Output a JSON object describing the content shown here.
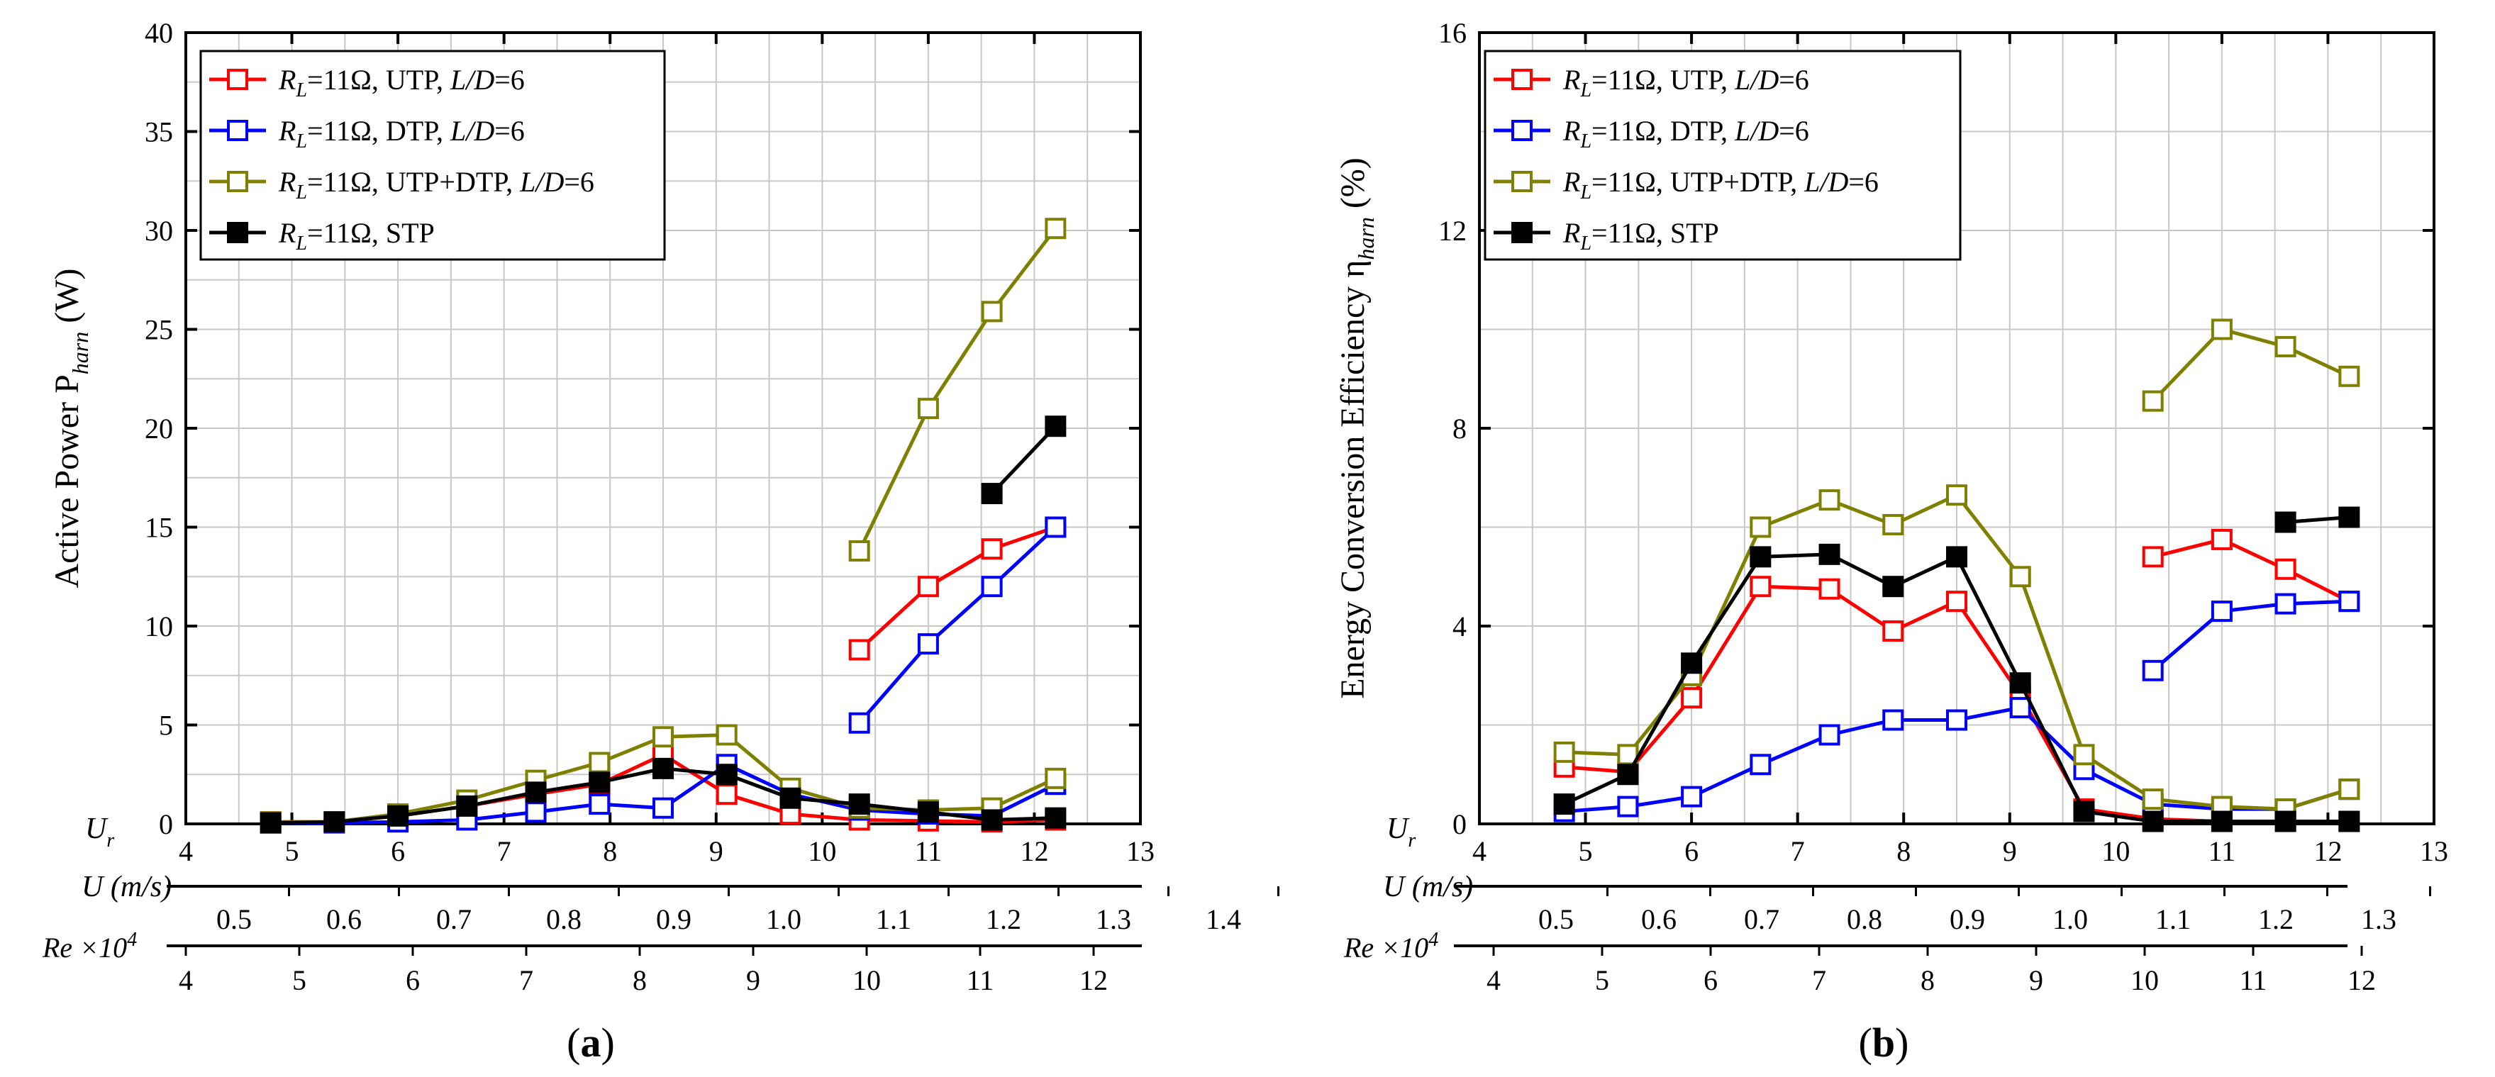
{
  "chart_data": [
    {
      "panel_label": "(a)",
      "type": "line",
      "ylabel": "Active Power P",
      "ylabel_sub": "harn",
      "ylabel_unit": "(W)",
      "ylim": [
        0,
        40
      ],
      "yticks": [
        "0",
        "5",
        "10",
        "15",
        "20",
        "25",
        "30",
        "35",
        "40"
      ],
      "xlim": [
        4,
        13
      ],
      "x_axis_label": "U",
      "x_axis_label_sub": "r",
      "xticks": [
        "4",
        "5",
        "6",
        "7",
        "8",
        "9",
        "10",
        "11",
        "12",
        "13"
      ],
      "u_axis_label": "U (m/s)",
      "u_ticks": [
        "0.5",
        "0.6",
        "0.7",
        "0.8",
        "0.9",
        "1.0",
        "1.1",
        "1.2",
        "1.3",
        "1.4"
      ],
      "re_axis_label": "Re ×10",
      "re_axis_label_sup": "4",
      "re_ticks": [
        "4",
        "5",
        "6",
        "7",
        "8",
        "9",
        "10",
        "11",
        "12"
      ],
      "grid": true,
      "legend": "top-left",
      "series": [
        {
          "name": "UTP",
          "legend_parts": [
            "R",
            "L",
            "=11Ω, UTP, ",
            "L/D",
            "=6"
          ],
          "color": "#ff0000",
          "marker": "open-square",
          "segments": [
            [
              [
                4.8,
                0.1
              ],
              [
                5.4,
                0.1
              ],
              [
                6.0,
                0.4
              ],
              [
                6.65,
                0.9
              ],
              [
                7.3,
                1.5
              ],
              [
                7.9,
                2.0
              ],
              [
                8.5,
                3.5
              ],
              [
                9.1,
                1.5
              ],
              [
                9.7,
                0.5
              ],
              [
                10.35,
                0.2
              ],
              [
                11.0,
                0.15
              ],
              [
                11.6,
                0.1
              ],
              [
                12.2,
                0.2
              ]
            ],
            [
              [
                10.35,
                8.8
              ],
              [
                11.0,
                12.0
              ],
              [
                11.6,
                13.9
              ],
              [
                12.2,
                15.0
              ]
            ]
          ]
        },
        {
          "name": "DTP",
          "legend_parts": [
            "R",
            "L",
            "=11Ω, DTP, ",
            "L/D",
            "=6"
          ],
          "color": "#0000ff",
          "marker": "open-square",
          "segments": [
            [
              [
                4.8,
                0.05
              ],
              [
                5.4,
                0.05
              ],
              [
                6.0,
                0.1
              ],
              [
                6.65,
                0.2
              ],
              [
                7.3,
                0.6
              ],
              [
                7.9,
                1.0
              ],
              [
                8.5,
                0.8
              ],
              [
                9.1,
                3.0
              ],
              [
                9.7,
                1.5
              ],
              [
                10.35,
                0.7
              ],
              [
                11.0,
                0.5
              ],
              [
                11.6,
                0.4
              ],
              [
                12.2,
                2.0
              ]
            ],
            [
              [
                10.35,
                5.1
              ],
              [
                11.0,
                9.1
              ],
              [
                11.6,
                12.0
              ],
              [
                12.2,
                15.0
              ]
            ]
          ]
        },
        {
          "name": "UTP+DTP",
          "legend_parts": [
            "R",
            "L",
            "=11Ω, UTP+DTP, ",
            "L/D",
            "=6"
          ],
          "color": "#808000",
          "marker": "open-square",
          "segments": [
            [
              [
                4.8,
                0.1
              ],
              [
                5.4,
                0.1
              ],
              [
                6.0,
                0.5
              ],
              [
                6.65,
                1.2
              ],
              [
                7.3,
                2.2
              ],
              [
                7.9,
                3.1
              ],
              [
                8.5,
                4.4
              ],
              [
                9.1,
                4.5
              ],
              [
                9.7,
                1.8
              ],
              [
                10.35,
                0.8
              ],
              [
                11.0,
                0.7
              ],
              [
                11.6,
                0.8
              ],
              [
                12.2,
                2.3
              ]
            ],
            [
              [
                10.35,
                13.8
              ],
              [
                11.0,
                21.0
              ],
              [
                11.6,
                25.9
              ],
              [
                12.2,
                30.1
              ]
            ]
          ]
        },
        {
          "name": "STP",
          "legend_parts": [
            "R",
            "L",
            "=11Ω, STP",
            "",
            ""
          ],
          "color": "#000000",
          "marker": "filled-square",
          "segments": [
            [
              [
                4.8,
                0.05
              ],
              [
                5.4,
                0.1
              ],
              [
                6.0,
                0.4
              ],
              [
                6.65,
                0.9
              ],
              [
                7.3,
                1.6
              ],
              [
                7.9,
                2.1
              ],
              [
                8.5,
                2.8
              ],
              [
                9.1,
                2.5
              ],
              [
                9.7,
                1.3
              ],
              [
                10.35,
                1.0
              ],
              [
                11.0,
                0.6
              ],
              [
                11.6,
                0.2
              ],
              [
                12.2,
                0.3
              ]
            ],
            [
              [
                11.6,
                16.7
              ],
              [
                12.2,
                20.1
              ]
            ]
          ]
        }
      ]
    },
    {
      "panel_label": "(b)",
      "type": "line",
      "ylabel": "Energy Conversion Efficiency η",
      "ylabel_sub": "harn",
      "ylabel_unit": "(%)",
      "ylim": [
        0,
        16
      ],
      "yticks": [
        "0",
        "4",
        "8",
        "12",
        "16"
      ],
      "xlim": [
        4,
        13
      ],
      "x_axis_label": "U",
      "x_axis_label_sub": "r",
      "xticks": [
        "4",
        "5",
        "6",
        "7",
        "8",
        "9",
        "10",
        "11",
        "12",
        "13"
      ],
      "u_axis_label": "U (m/s)",
      "u_ticks": [
        "0.5",
        "0.6",
        "0.7",
        "0.8",
        "0.9",
        "1.0",
        "1.1",
        "1.2",
        "1.3"
      ],
      "re_axis_label": "Re ×10",
      "re_axis_label_sup": "4",
      "re_ticks": [
        "4",
        "5",
        "6",
        "7",
        "8",
        "9",
        "10",
        "11",
        "12"
      ],
      "grid": true,
      "legend": "top-left",
      "series": [
        {
          "name": "UTP",
          "legend_parts": [
            "R",
            "L",
            "=11Ω, UTP, ",
            "L/D",
            "=6"
          ],
          "color": "#ff0000",
          "marker": "open-square",
          "segments": [
            [
              [
                4.8,
                1.15
              ],
              [
                5.4,
                1.05
              ],
              [
                6.0,
                2.55
              ],
              [
                6.65,
                4.8
              ],
              [
                7.3,
                4.75
              ],
              [
                7.9,
                3.9
              ],
              [
                8.5,
                4.5
              ],
              [
                9.1,
                2.6
              ],
              [
                9.7,
                0.3
              ],
              [
                10.35,
                0.1
              ],
              [
                11.0,
                0.05
              ],
              [
                11.6,
                0.05
              ],
              [
                12.2,
                0.05
              ]
            ],
            [
              [
                10.35,
                5.4
              ],
              [
                11.0,
                5.75
              ],
              [
                11.6,
                5.15
              ],
              [
                12.2,
                4.5
              ]
            ]
          ]
        },
        {
          "name": "DTP",
          "legend_parts": [
            "R",
            "L",
            "=11Ω, DTP, ",
            "L/D",
            "=6"
          ],
          "color": "#0000ff",
          "marker": "open-square",
          "segments": [
            [
              [
                4.8,
                0.25
              ],
              [
                5.4,
                0.35
              ],
              [
                6.0,
                0.55
              ],
              [
                6.65,
                1.2
              ],
              [
                7.3,
                1.8
              ],
              [
                7.9,
                2.1
              ],
              [
                8.5,
                2.1
              ],
              [
                9.1,
                2.35
              ],
              [
                9.7,
                1.1
              ],
              [
                10.35,
                0.4
              ],
              [
                11.0,
                0.3
              ],
              [
                11.6,
                0.3
              ],
              [
                12.2,
                0.7
              ]
            ],
            [
              [
                10.35,
                3.1
              ],
              [
                11.0,
                4.3
              ],
              [
                11.6,
                4.45
              ],
              [
                12.2,
                4.5
              ]
            ]
          ]
        },
        {
          "name": "UTP+DTP",
          "legend_parts": [
            "R",
            "L",
            "=11Ω, UTP+DTP, ",
            "L/D",
            "=6"
          ],
          "color": "#808000",
          "marker": "open-square",
          "segments": [
            [
              [
                4.8,
                1.45
              ],
              [
                5.4,
                1.4
              ],
              [
                6.0,
                3.0
              ],
              [
                6.65,
                6.0
              ],
              [
                7.3,
                6.55
              ],
              [
                7.9,
                6.05
              ],
              [
                8.5,
                6.65
              ],
              [
                9.1,
                5.0
              ],
              [
                9.7,
                1.4
              ],
              [
                10.35,
                0.5
              ],
              [
                11.0,
                0.35
              ],
              [
                11.6,
                0.3
              ],
              [
                12.2,
                0.7
              ]
            ],
            [
              [
                10.35,
                8.55
              ],
              [
                11.0,
                10.0
              ],
              [
                11.6,
                9.65
              ],
              [
                12.2,
                9.05
              ]
            ]
          ]
        },
        {
          "name": "STP",
          "legend_parts": [
            "R",
            "L",
            "=11Ω, STP",
            "",
            ""
          ],
          "color": "#000000",
          "marker": "filled-square",
          "segments": [
            [
              [
                4.8,
                0.4
              ],
              [
                5.4,
                1.0
              ],
              [
                6.0,
                3.25
              ],
              [
                6.65,
                5.4
              ],
              [
                7.3,
                5.45
              ],
              [
                7.9,
                4.8
              ],
              [
                8.5,
                5.4
              ],
              [
                9.1,
                2.85
              ],
              [
                9.7,
                0.25
              ],
              [
                10.35,
                0.05
              ],
              [
                11.0,
                0.05
              ],
              [
                11.6,
                0.05
              ],
              [
                12.2,
                0.05
              ]
            ],
            [
              [
                11.6,
                6.1
              ],
              [
                12.2,
                6.2
              ]
            ]
          ]
        }
      ]
    }
  ]
}
